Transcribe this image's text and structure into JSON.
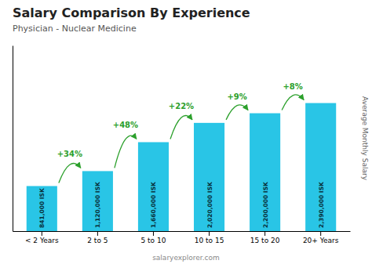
{
  "chart_data": {
    "type": "bar",
    "title": "Salary Comparison By Experience",
    "subtitle": "Physician - Nuclear Medicine",
    "categories": [
      "< 2 Years",
      "2 to 5",
      "5 to 10",
      "10 to 15",
      "15 to 20",
      "20+ Years"
    ],
    "values": [
      841000,
      1120000,
      1660000,
      2020000,
      2200000,
      2390000
    ],
    "value_labels": [
      "841,000 ISK",
      "1,120,000 ISK",
      "1,660,000 ISK",
      "2,020,000 ISK",
      "2,200,000 ISK",
      "2,390,000 ISK"
    ],
    "data_labels": true,
    "color": "#29c5e6",
    "ylim": [
      0,
      3465500
    ],
    "ylabel": "Average Monthly Salary",
    "annotations": [
      "+34%",
      "+48%",
      "+22%",
      "+9%",
      "+8%"
    ],
    "source": "salaryexplorer.com",
    "tick_labels": "x",
    "grid": false
  }
}
